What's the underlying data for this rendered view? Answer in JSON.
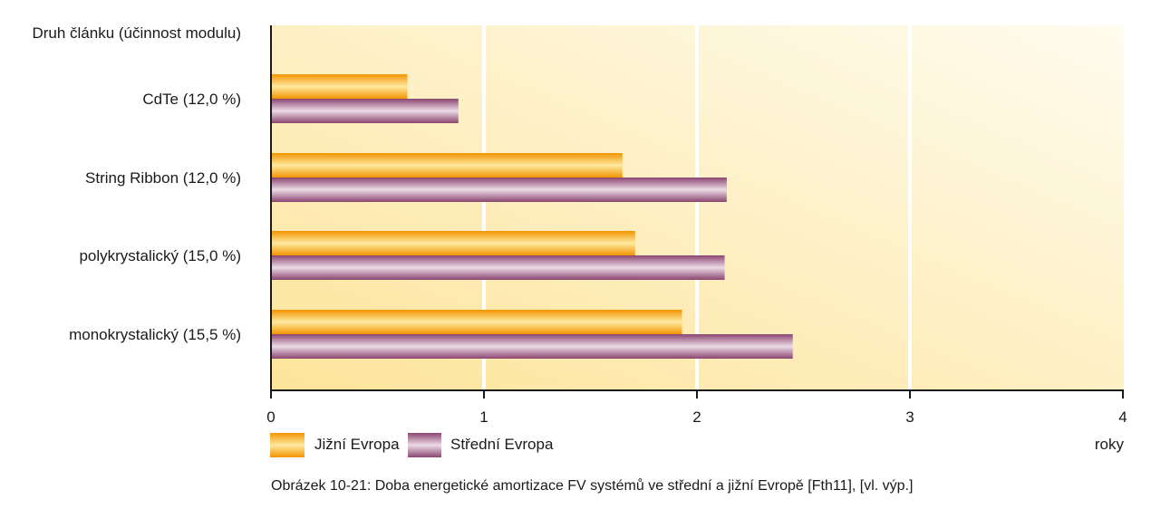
{
  "chart_data": {
    "type": "bar",
    "orientation": "horizontal",
    "ylabel": "Druh článku (účinnost modulu)",
    "xlabel": "roky",
    "categories": [
      "CdTe (12,0 %)",
      "String Ribbon (12,0 %)",
      "polykrystalický (15,0 %)",
      "monokrystalický (15,5 %)"
    ],
    "series": [
      {
        "name": "Jižní Evropa",
        "values": [
          0.64,
          1.65,
          1.71,
          1.93
        ]
      },
      {
        "name": "Střední Evropa",
        "values": [
          0.88,
          2.14,
          2.13,
          2.45
        ]
      }
    ],
    "xlim": [
      0,
      4
    ],
    "xticks": [
      "0",
      "1",
      "2",
      "3",
      "4"
    ],
    "grid": true,
    "legend": "bottom-left",
    "caption": "Obrázek 10-21: Doba energetické amortizace FV systémů ve střední a jižní Evropě [Fth11], [vl. výp.]",
    "colors": {
      "south": "#f39a00",
      "central": "#8e4a74",
      "bg_light": "#fffbea",
      "bg_dark": "#fde396"
    }
  }
}
